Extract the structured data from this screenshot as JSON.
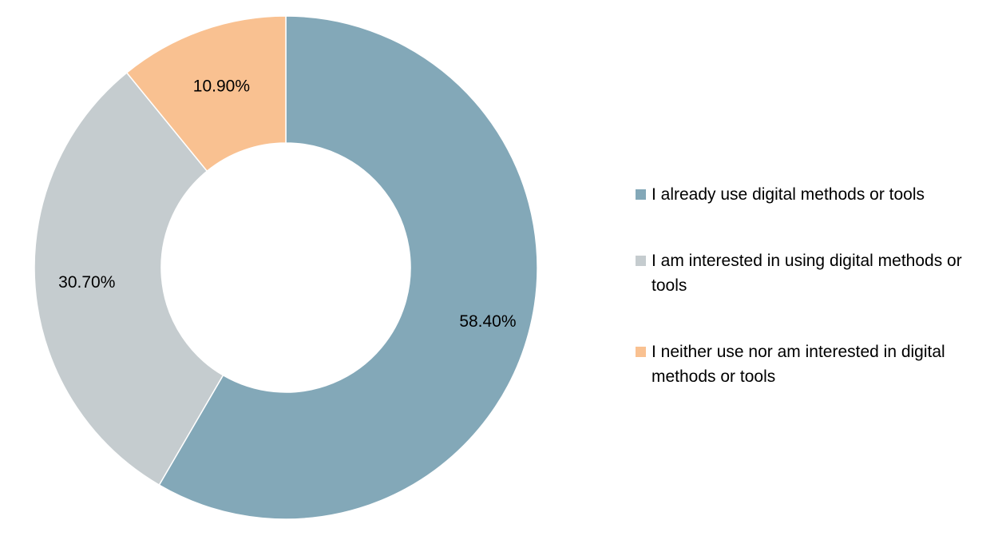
{
  "chart_data": {
    "type": "pie",
    "title": "",
    "donut": true,
    "legend_position": "right",
    "series": [
      {
        "name": "I already use digital methods or tools",
        "value": 58.4,
        "label": "58.40%",
        "color": "#83a8b8"
      },
      {
        "name": "I am interested in using digital methods or tools",
        "value": 30.7,
        "label": "30.70%",
        "color": "#c5cccf"
      },
      {
        "name": "I neither use nor am interested in digital methods or tools",
        "value": 10.9,
        "label": "10.90%",
        "color": "#f9c191"
      }
    ]
  }
}
